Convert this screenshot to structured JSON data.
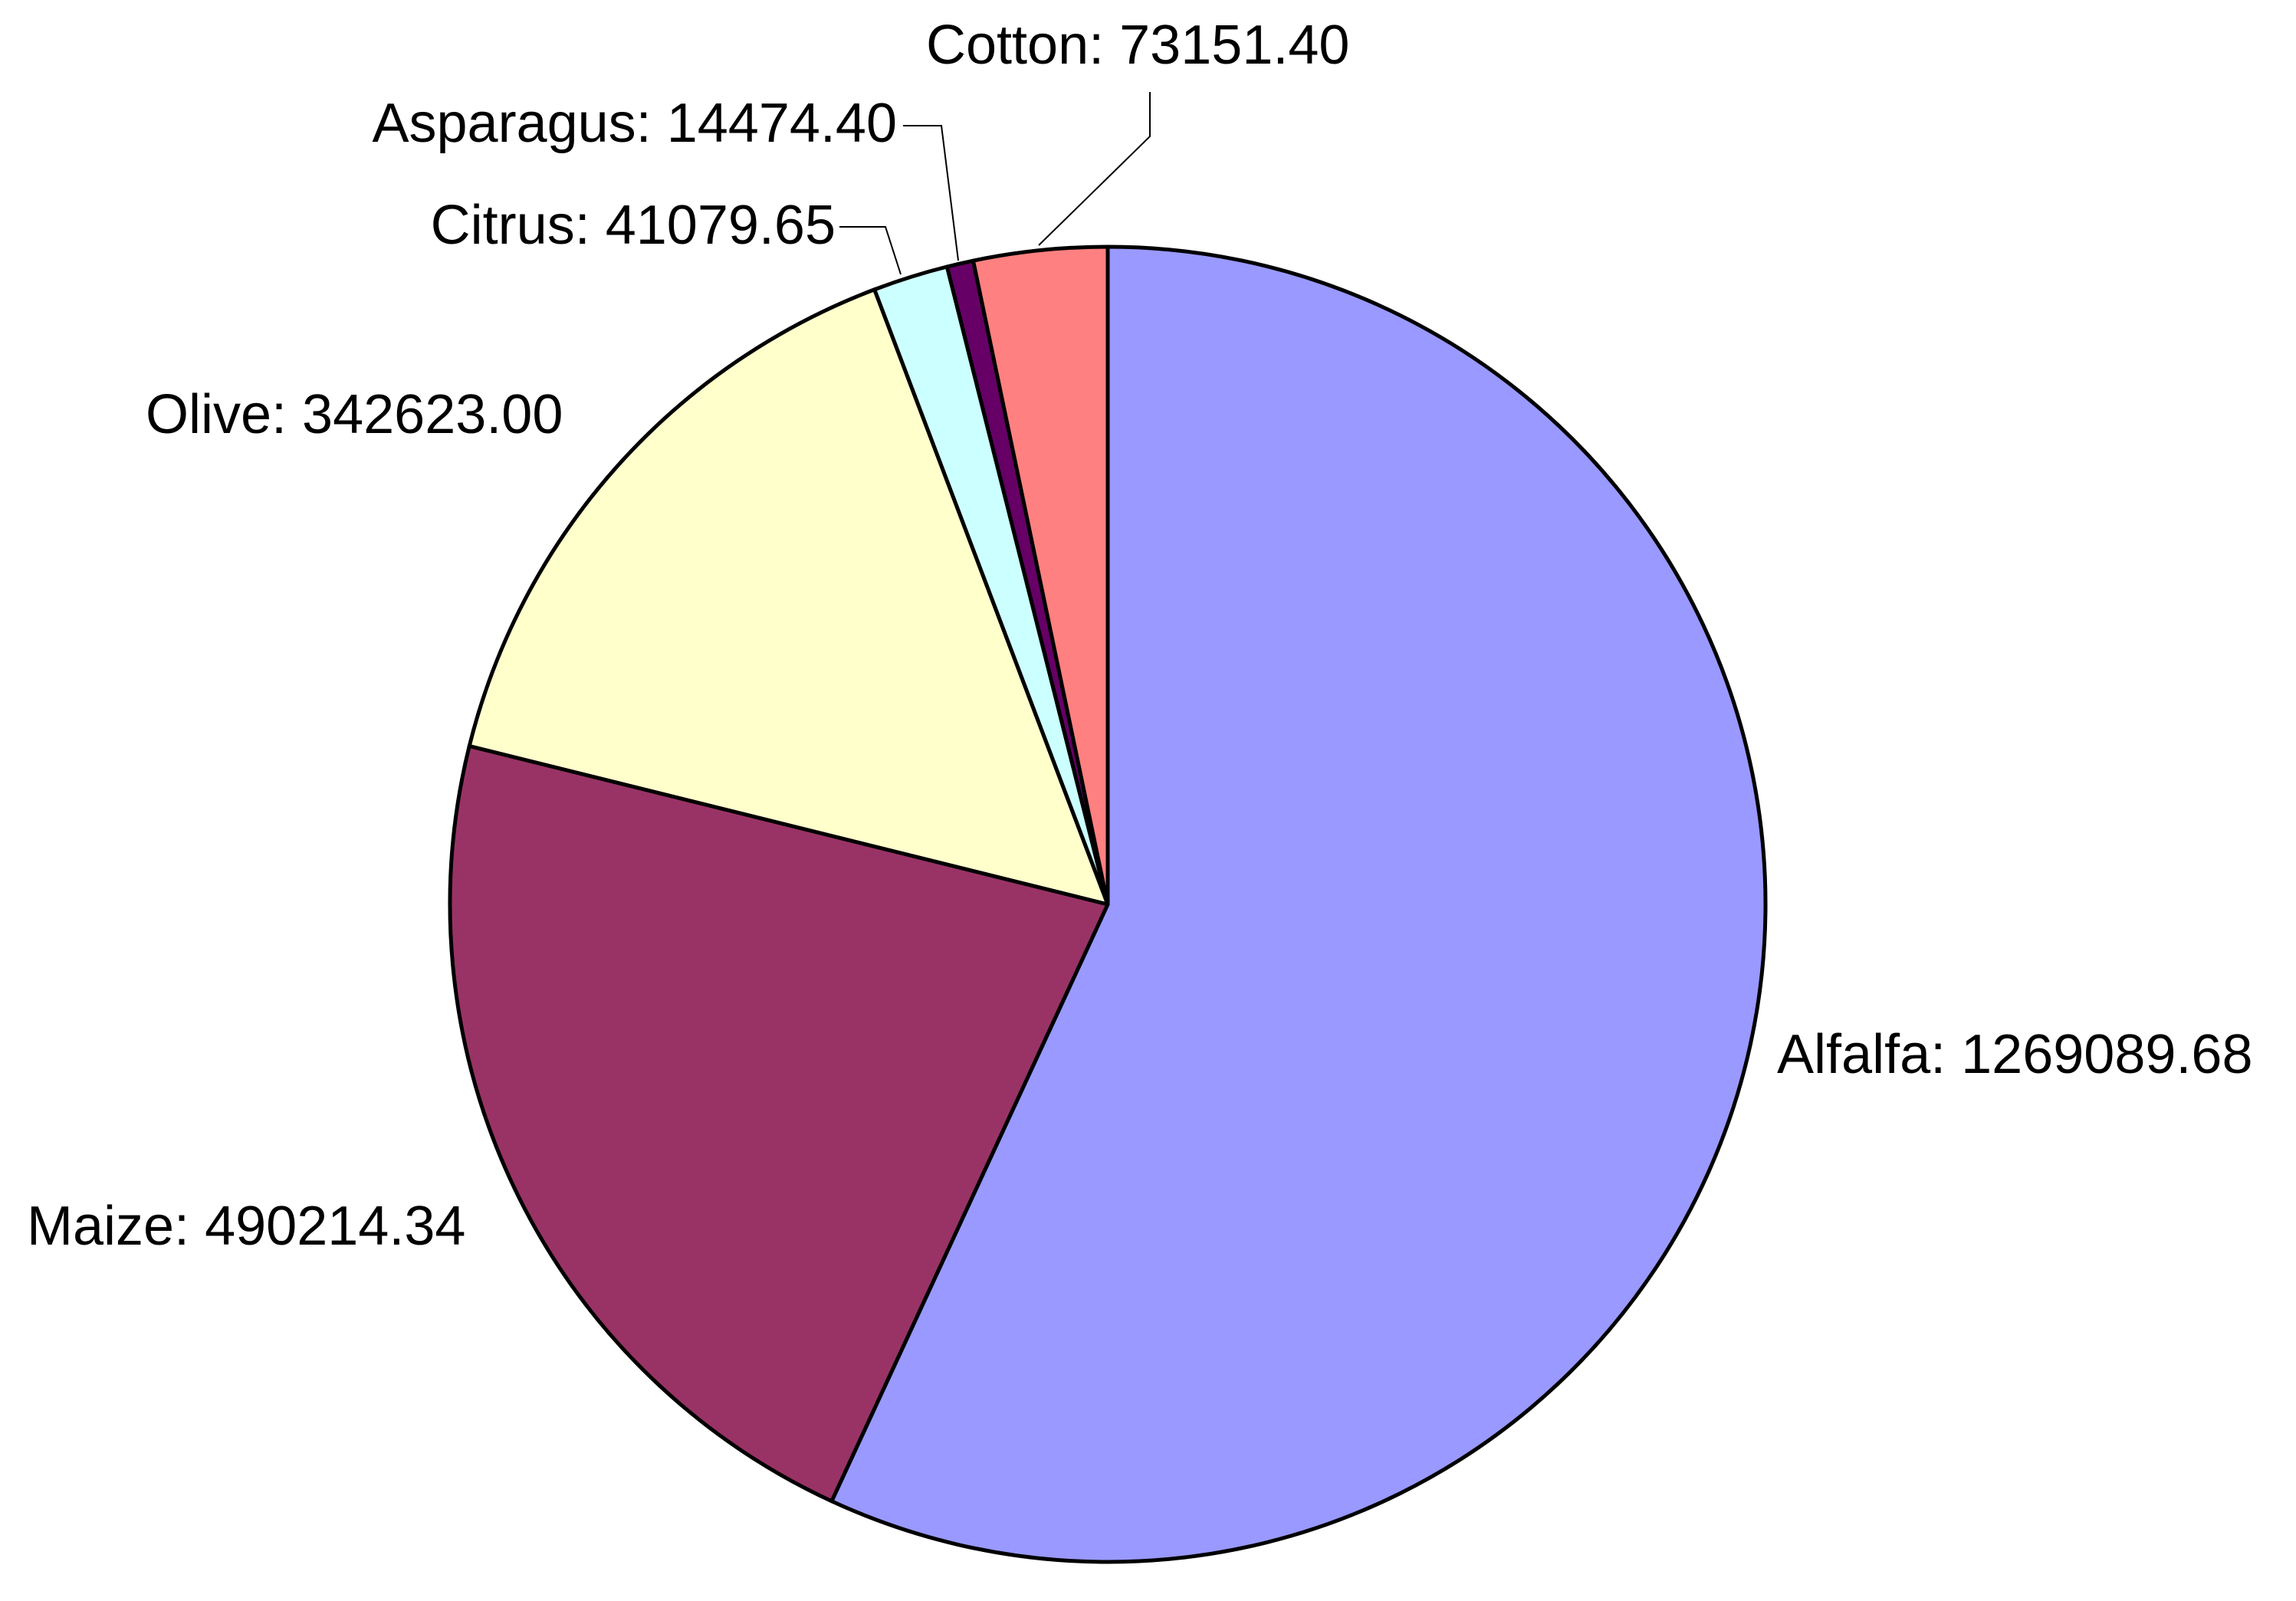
{
  "chart_data": {
    "type": "pie",
    "title": "",
    "start_angle_deg": 0,
    "direction": "clockwise",
    "label_format": "name: value",
    "slices": [
      {
        "name": "Alfalfa",
        "value": 1269089.68,
        "label": "Alfalfa: 1269089.68",
        "color": "#9999ff"
      },
      {
        "name": "Maize",
        "value": 490214.34,
        "label": "Maize: 490214.34",
        "color": "#993366"
      },
      {
        "name": "Olive",
        "value": 342623.0,
        "label": "Olive: 342623.00",
        "color": "#ffffcc"
      },
      {
        "name": "Citrus",
        "value": 41079.65,
        "label": "Citrus: 41079.65",
        "color": "#ccffff"
      },
      {
        "name": "Asparagus",
        "value": 14474.4,
        "label": "Asparagus: 14474.40",
        "color": "#660066"
      },
      {
        "name": "Cotton",
        "value": 73151.4,
        "label": "Cotton: 73151.40",
        "color": "#ff8080"
      }
    ],
    "edge_color": "#000000"
  }
}
